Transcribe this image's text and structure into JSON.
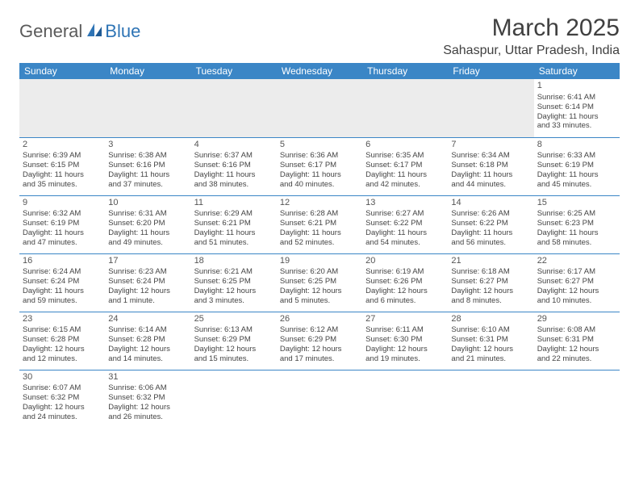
{
  "logo": {
    "part1": "General",
    "part2": "Blue"
  },
  "title": "March 2025",
  "location": "Sahaspur, Uttar Pradesh, India",
  "colors": {
    "header_bg": "#3b86c6",
    "header_text": "#ffffff",
    "border": "#3b86c6",
    "logo_gray": "#5a5a5a",
    "logo_blue": "#2e74b5",
    "stripe": "#ececec"
  },
  "day_headers": [
    "Sunday",
    "Monday",
    "Tuesday",
    "Wednesday",
    "Thursday",
    "Friday",
    "Saturday"
  ],
  "weeks": [
    [
      null,
      null,
      null,
      null,
      null,
      null,
      {
        "d": "1",
        "sr": "Sunrise: 6:41 AM",
        "ss": "Sunset: 6:14 PM",
        "dl1": "Daylight: 11 hours",
        "dl2": "and 33 minutes."
      }
    ],
    [
      {
        "d": "2",
        "sr": "Sunrise: 6:39 AM",
        "ss": "Sunset: 6:15 PM",
        "dl1": "Daylight: 11 hours",
        "dl2": "and 35 minutes."
      },
      {
        "d": "3",
        "sr": "Sunrise: 6:38 AM",
        "ss": "Sunset: 6:16 PM",
        "dl1": "Daylight: 11 hours",
        "dl2": "and 37 minutes."
      },
      {
        "d": "4",
        "sr": "Sunrise: 6:37 AM",
        "ss": "Sunset: 6:16 PM",
        "dl1": "Daylight: 11 hours",
        "dl2": "and 38 minutes."
      },
      {
        "d": "5",
        "sr": "Sunrise: 6:36 AM",
        "ss": "Sunset: 6:17 PM",
        "dl1": "Daylight: 11 hours",
        "dl2": "and 40 minutes."
      },
      {
        "d": "6",
        "sr": "Sunrise: 6:35 AM",
        "ss": "Sunset: 6:17 PM",
        "dl1": "Daylight: 11 hours",
        "dl2": "and 42 minutes."
      },
      {
        "d": "7",
        "sr": "Sunrise: 6:34 AM",
        "ss": "Sunset: 6:18 PM",
        "dl1": "Daylight: 11 hours",
        "dl2": "and 44 minutes."
      },
      {
        "d": "8",
        "sr": "Sunrise: 6:33 AM",
        "ss": "Sunset: 6:19 PM",
        "dl1": "Daylight: 11 hours",
        "dl2": "and 45 minutes."
      }
    ],
    [
      {
        "d": "9",
        "sr": "Sunrise: 6:32 AM",
        "ss": "Sunset: 6:19 PM",
        "dl1": "Daylight: 11 hours",
        "dl2": "and 47 minutes."
      },
      {
        "d": "10",
        "sr": "Sunrise: 6:31 AM",
        "ss": "Sunset: 6:20 PM",
        "dl1": "Daylight: 11 hours",
        "dl2": "and 49 minutes."
      },
      {
        "d": "11",
        "sr": "Sunrise: 6:29 AM",
        "ss": "Sunset: 6:21 PM",
        "dl1": "Daylight: 11 hours",
        "dl2": "and 51 minutes."
      },
      {
        "d": "12",
        "sr": "Sunrise: 6:28 AM",
        "ss": "Sunset: 6:21 PM",
        "dl1": "Daylight: 11 hours",
        "dl2": "and 52 minutes."
      },
      {
        "d": "13",
        "sr": "Sunrise: 6:27 AM",
        "ss": "Sunset: 6:22 PM",
        "dl1": "Daylight: 11 hours",
        "dl2": "and 54 minutes."
      },
      {
        "d": "14",
        "sr": "Sunrise: 6:26 AM",
        "ss": "Sunset: 6:22 PM",
        "dl1": "Daylight: 11 hours",
        "dl2": "and 56 minutes."
      },
      {
        "d": "15",
        "sr": "Sunrise: 6:25 AM",
        "ss": "Sunset: 6:23 PM",
        "dl1": "Daylight: 11 hours",
        "dl2": "and 58 minutes."
      }
    ],
    [
      {
        "d": "16",
        "sr": "Sunrise: 6:24 AM",
        "ss": "Sunset: 6:24 PM",
        "dl1": "Daylight: 11 hours",
        "dl2": "and 59 minutes."
      },
      {
        "d": "17",
        "sr": "Sunrise: 6:23 AM",
        "ss": "Sunset: 6:24 PM",
        "dl1": "Daylight: 12 hours",
        "dl2": "and 1 minute."
      },
      {
        "d": "18",
        "sr": "Sunrise: 6:21 AM",
        "ss": "Sunset: 6:25 PM",
        "dl1": "Daylight: 12 hours",
        "dl2": "and 3 minutes."
      },
      {
        "d": "19",
        "sr": "Sunrise: 6:20 AM",
        "ss": "Sunset: 6:25 PM",
        "dl1": "Daylight: 12 hours",
        "dl2": "and 5 minutes."
      },
      {
        "d": "20",
        "sr": "Sunrise: 6:19 AM",
        "ss": "Sunset: 6:26 PM",
        "dl1": "Daylight: 12 hours",
        "dl2": "and 6 minutes."
      },
      {
        "d": "21",
        "sr": "Sunrise: 6:18 AM",
        "ss": "Sunset: 6:27 PM",
        "dl1": "Daylight: 12 hours",
        "dl2": "and 8 minutes."
      },
      {
        "d": "22",
        "sr": "Sunrise: 6:17 AM",
        "ss": "Sunset: 6:27 PM",
        "dl1": "Daylight: 12 hours",
        "dl2": "and 10 minutes."
      }
    ],
    [
      {
        "d": "23",
        "sr": "Sunrise: 6:15 AM",
        "ss": "Sunset: 6:28 PM",
        "dl1": "Daylight: 12 hours",
        "dl2": "and 12 minutes."
      },
      {
        "d": "24",
        "sr": "Sunrise: 6:14 AM",
        "ss": "Sunset: 6:28 PM",
        "dl1": "Daylight: 12 hours",
        "dl2": "and 14 minutes."
      },
      {
        "d": "25",
        "sr": "Sunrise: 6:13 AM",
        "ss": "Sunset: 6:29 PM",
        "dl1": "Daylight: 12 hours",
        "dl2": "and 15 minutes."
      },
      {
        "d": "26",
        "sr": "Sunrise: 6:12 AM",
        "ss": "Sunset: 6:29 PM",
        "dl1": "Daylight: 12 hours",
        "dl2": "and 17 minutes."
      },
      {
        "d": "27",
        "sr": "Sunrise: 6:11 AM",
        "ss": "Sunset: 6:30 PM",
        "dl1": "Daylight: 12 hours",
        "dl2": "and 19 minutes."
      },
      {
        "d": "28",
        "sr": "Sunrise: 6:10 AM",
        "ss": "Sunset: 6:31 PM",
        "dl1": "Daylight: 12 hours",
        "dl2": "and 21 minutes."
      },
      {
        "d": "29",
        "sr": "Sunrise: 6:08 AM",
        "ss": "Sunset: 6:31 PM",
        "dl1": "Daylight: 12 hours",
        "dl2": "and 22 minutes."
      }
    ],
    [
      {
        "d": "30",
        "sr": "Sunrise: 6:07 AM",
        "ss": "Sunset: 6:32 PM",
        "dl1": "Daylight: 12 hours",
        "dl2": "and 24 minutes."
      },
      {
        "d": "31",
        "sr": "Sunrise: 6:06 AM",
        "ss": "Sunset: 6:32 PM",
        "dl1": "Daylight: 12 hours",
        "dl2": "and 26 minutes."
      },
      null,
      null,
      null,
      null,
      null
    ]
  ]
}
